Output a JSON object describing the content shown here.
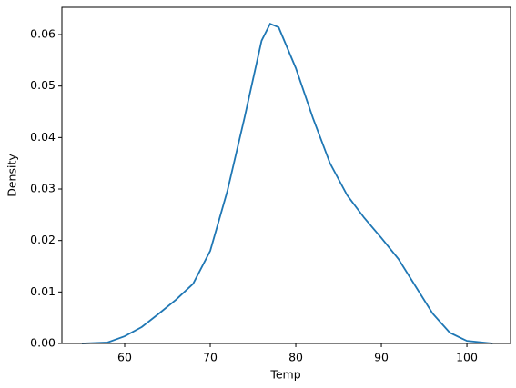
{
  "chart_data": {
    "type": "line",
    "xlabel": "Temp",
    "ylabel": "Density",
    "x": [
      55,
      58,
      60,
      62,
      64,
      66,
      68,
      70,
      72,
      74,
      76,
      77,
      78,
      80,
      82,
      84,
      86,
      88,
      90,
      92,
      94,
      96,
      98,
      100,
      103
    ],
    "series": [
      {
        "name": "Temp",
        "color": "#1f77b4",
        "values": [
          0.0,
          0.0002,
          0.0014,
          0.0032,
          0.0058,
          0.0085,
          0.0116,
          0.018,
          0.0296,
          0.0438,
          0.0588,
          0.0621,
          0.0614,
          0.0535,
          0.0438,
          0.035,
          0.0288,
          0.0244,
          0.0205,
          0.0164,
          0.0111,
          0.0058,
          0.0021,
          0.0005,
          0.0
        ]
      }
    ],
    "xlim": [
      52.66,
      105.1
    ],
    "ylim": [
      0,
      0.0653
    ],
    "xticks": [
      60,
      70,
      80,
      90,
      100
    ],
    "yticks": [
      {
        "value": 0,
        "label": "0.00"
      },
      {
        "value": 0.01,
        "label": "0.01"
      },
      {
        "value": 0.02,
        "label": "0.02"
      },
      {
        "value": 0.03,
        "label": "0.03"
      },
      {
        "value": 0.04,
        "label": "0.04"
      },
      {
        "value": 0.05,
        "label": "0.05"
      },
      {
        "value": 0.06,
        "label": "0.06"
      }
    ],
    "grid": false
  }
}
